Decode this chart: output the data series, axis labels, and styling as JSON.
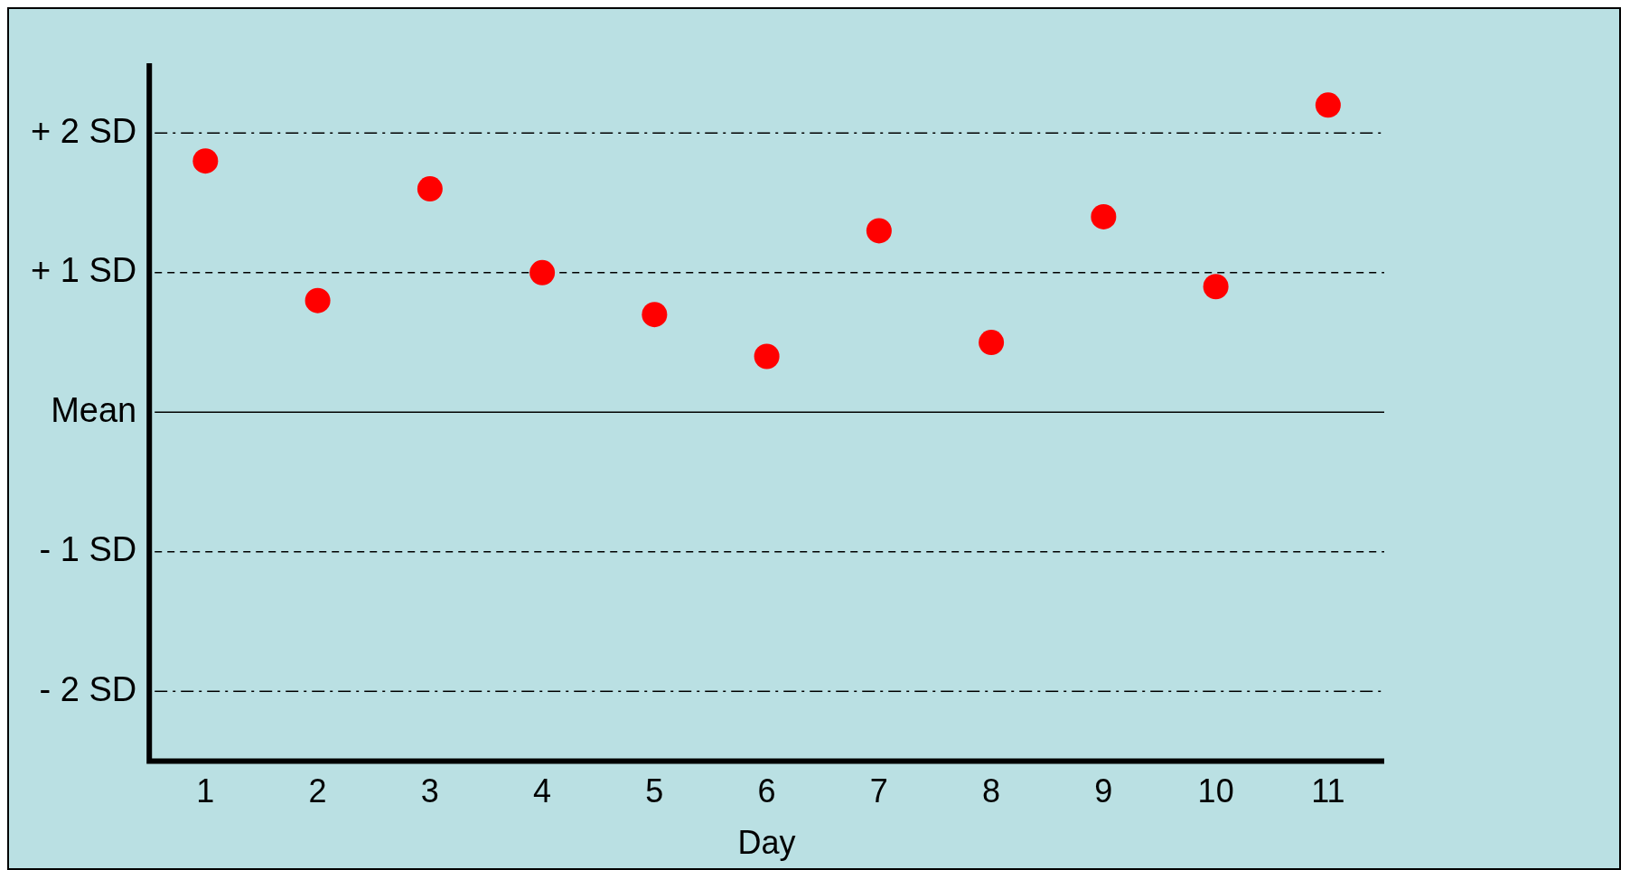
{
  "chart_data": {
    "type": "scatter",
    "xlabel": "Day",
    "categories": [
      "1",
      "2",
      "3",
      "4",
      "5",
      "6",
      "7",
      "8",
      "9",
      "10",
      "11"
    ],
    "series": [
      {
        "color": "#ff0000",
        "values": [
          1.8,
          0.8,
          1.6,
          1.0,
          0.7,
          0.4,
          1.3,
          0.5,
          1.4,
          0.9,
          2.2
        ]
      }
    ],
    "ylim": [
      -2.5,
      2.5
    ],
    "yticks": [
      {
        "value": -2,
        "label": "- 2 SD"
      },
      {
        "value": -1,
        "label": "- 1 SD"
      },
      {
        "value": 0,
        "label": "Mean"
      },
      {
        "value": 1,
        "label": "+ 1 SD"
      },
      {
        "value": 2,
        "label": "+ 2 SD"
      }
    ],
    "ref_lines": [
      {
        "axis": "y",
        "value": 2,
        "line_style": "dashdot",
        "color": "#000000"
      },
      {
        "axis": "y",
        "value": 1,
        "line_style": "dashed",
        "color": "#000000"
      },
      {
        "axis": "y",
        "value": 0,
        "line_style": "solid",
        "color": "#000000"
      },
      {
        "axis": "y",
        "value": -1,
        "line_style": "dashed",
        "color": "#000000"
      },
      {
        "axis": "y",
        "value": -2,
        "line_style": "dashdot",
        "color": "#000000"
      }
    ],
    "grid": false,
    "legend": false,
    "marker": "circle"
  }
}
